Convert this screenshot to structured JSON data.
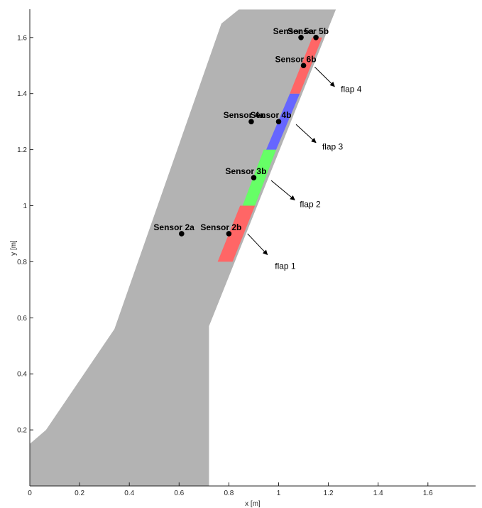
{
  "chart_data": {
    "type": "scatter",
    "title": "",
    "xlabel": "x [m]",
    "ylabel": "y [m]",
    "xlim": [
      0,
      1.8
    ],
    "ylim": [
      0,
      1.7
    ],
    "xticks": [
      "0",
      "0.2",
      "0.4",
      "0.6",
      "0.8",
      "1",
      "1.2",
      "1.4",
      "1.6"
    ],
    "yticks": [
      "0.2",
      "0.4",
      "0.6",
      "0.8",
      "1",
      "1.2",
      "1.4",
      "1.6"
    ],
    "grid": false,
    "wing_planform": {
      "color": "#b3b3b3",
      "outline": [
        [
          0,
          0
        ],
        [
          0,
          0.15
        ],
        [
          0.065,
          0.2
        ],
        [
          0.34,
          0.56
        ],
        [
          0.77,
          1.65
        ],
        [
          0.84,
          1.7
        ],
        [
          1.23,
          1.7
        ],
        [
          0.72,
          0.57
        ],
        [
          0.72,
          0
        ]
      ]
    },
    "flaps": [
      {
        "name": "flap 1",
        "color": "#ff6666",
        "polygon": [
          [
            0.755,
            0.8
          ],
          [
            0.815,
            0.8
          ],
          [
            0.905,
            1.0
          ],
          [
            0.845,
            1.0
          ]
        ],
        "arrow": {
          "from": [
            0.875,
            0.9
          ],
          "to": [
            0.955,
            0.825
          ]
        },
        "label_at": [
          0.985,
          0.775
        ]
      },
      {
        "name": "flap 2",
        "color": "#66ff66",
        "polygon": [
          [
            0.855,
            1.0
          ],
          [
            0.905,
            1.0
          ],
          [
            0.99,
            1.2
          ],
          [
            0.94,
            1.2
          ]
        ],
        "arrow": {
          "from": [
            0.97,
            1.09
          ],
          "to": [
            1.065,
            1.02
          ]
        },
        "label_at": [
          1.085,
          0.995
        ]
      },
      {
        "name": "flap 3",
        "color": "#6666ff",
        "polygon": [
          [
            0.95,
            1.2
          ],
          [
            0.99,
            1.2
          ],
          [
            1.085,
            1.4
          ],
          [
            1.045,
            1.4
          ]
        ],
        "arrow": {
          "from": [
            1.07,
            1.29
          ],
          "to": [
            1.15,
            1.225
          ]
        },
        "label_at": [
          1.175,
          1.2
        ]
      },
      {
        "name": "flap 4",
        "color": "#ff6666",
        "polygon": [
          [
            1.045,
            1.4
          ],
          [
            1.085,
            1.4
          ],
          [
            1.175,
            1.6
          ],
          [
            1.135,
            1.6
          ]
        ],
        "arrow": {
          "from": [
            1.145,
            1.495
          ],
          "to": [
            1.225,
            1.425
          ]
        },
        "label_at": [
          1.25,
          1.405
        ]
      }
    ],
    "sensors": [
      {
        "label": "Sensor 2a",
        "x": 0.61,
        "y": 0.9
      },
      {
        "label": "Sensor 2b",
        "x": 0.8,
        "y": 0.9
      },
      {
        "label": "Sensor 3b",
        "x": 0.9,
        "y": 1.1
      },
      {
        "label": "Sensor 4a",
        "x": 0.89,
        "y": 1.3
      },
      {
        "label": "Sensor 4b",
        "x": 1.0,
        "y": 1.3
      },
      {
        "label": "Sensor 6b",
        "x": 1.1,
        "y": 1.5
      },
      {
        "label": "Sensor 5a",
        "x": 1.09,
        "y": 1.6
      },
      {
        "label": "Sensor 5b",
        "x": 1.15,
        "y": 1.6
      }
    ]
  }
}
